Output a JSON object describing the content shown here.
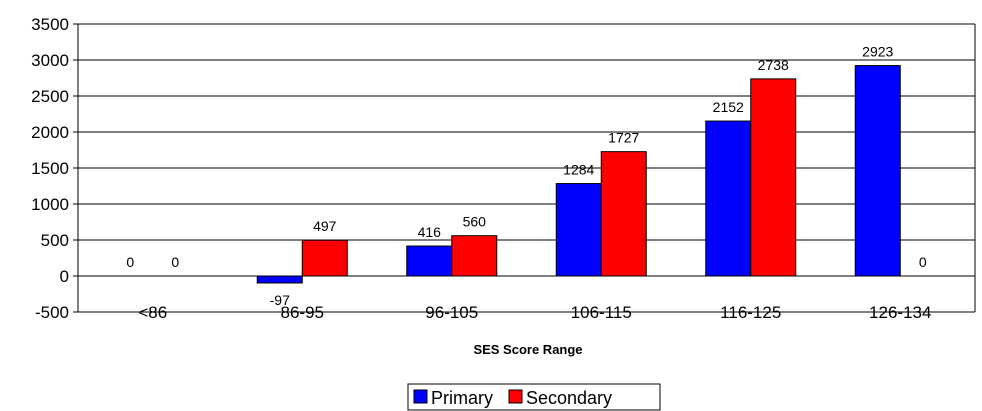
{
  "chart_data": {
    "type": "bar",
    "title": "",
    "xlabel": "SES Score Range",
    "ylabel": "",
    "categories": [
      "<86",
      "86-95",
      "96-105",
      "106-115",
      "116-125",
      "126-134"
    ],
    "series": [
      {
        "name": "Primary",
        "color": "#0000ff",
        "values": [
          0,
          -97,
          416,
          1284,
          2152,
          2923
        ]
      },
      {
        "name": "Secondary",
        "color": "#ff0000",
        "values": [
          0,
          497,
          560,
          1727,
          2738,
          0
        ]
      }
    ],
    "ylim": [
      -500,
      3500
    ],
    "yticks": [
      -500,
      0,
      500,
      1000,
      1500,
      2000,
      2500,
      3000,
      3500
    ],
    "grid": true,
    "legend": "bottom-center"
  }
}
